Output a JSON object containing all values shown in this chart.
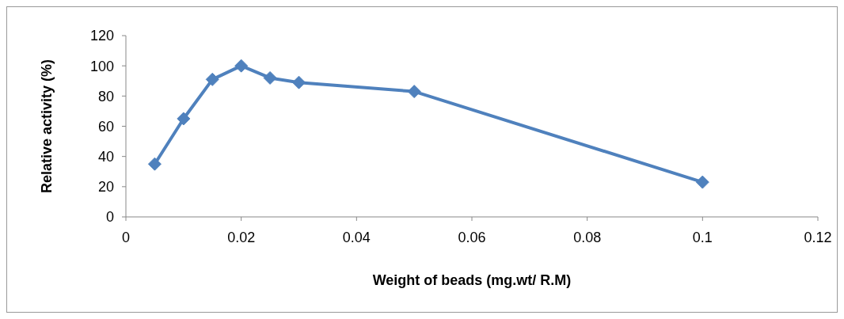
{
  "chart_data": {
    "type": "line",
    "xlabel": "Weight of beads (mg.wt/ R.M)",
    "ylabel": "Relative activity (%)",
    "x": [
      0.005,
      0.01,
      0.015,
      0.02,
      0.025,
      0.03,
      0.05,
      0.1
    ],
    "series": [
      {
        "color": "#4f81bd",
        "values": [
          35,
          65,
          91,
          100,
          92,
          89,
          83,
          23
        ]
      }
    ],
    "xlim": [
      0,
      0.12
    ],
    "xticks": [
      0,
      0.02,
      0.04,
      0.06,
      0.08,
      0.1,
      0.12
    ],
    "ylim": [
      0,
      120
    ],
    "yticks": [
      0,
      20,
      40,
      60,
      80,
      100,
      120
    ],
    "grid": false,
    "legend": false,
    "marker": "diamond",
    "line_style": "solid"
  }
}
